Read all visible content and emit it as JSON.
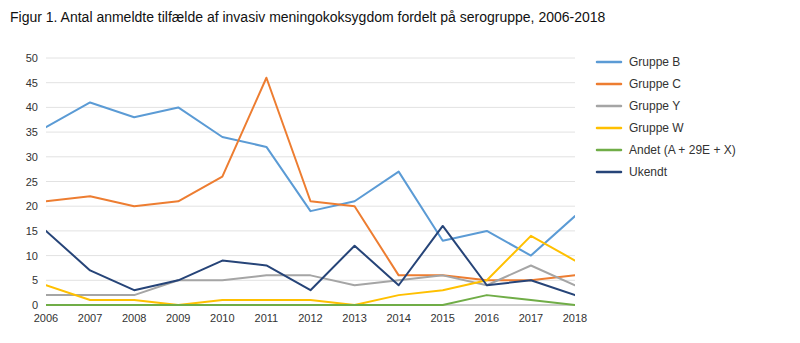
{
  "chart_data": {
    "type": "line",
    "title": "Figur 1. Antal anmeldte tilfælde af invasiv meningokoksygdom fordelt på serogruppe, 2006-2018",
    "x": [
      2006,
      2007,
      2008,
      2009,
      2010,
      2011,
      2012,
      2013,
      2014,
      2015,
      2016,
      2017,
      2018
    ],
    "series": [
      {
        "name": "Gruppe B",
        "color": "#5B9BD5",
        "values": [
          36,
          41,
          38,
          40,
          34,
          32,
          19,
          21,
          27,
          13,
          15,
          10,
          18
        ]
      },
      {
        "name": "Gruppe C",
        "color": "#ED7D31",
        "values": [
          21,
          22,
          20,
          21,
          26,
          46,
          21,
          20,
          6,
          6,
          5,
          5,
          6
        ]
      },
      {
        "name": "Gruppe Y",
        "color": "#A5A5A5",
        "values": [
          2,
          2,
          2,
          5,
          5,
          6,
          6,
          4,
          5,
          6,
          4,
          8,
          4
        ]
      },
      {
        "name": "Gruppe W",
        "color": "#FFC000",
        "values": [
          4,
          1,
          1,
          0,
          1,
          1,
          1,
          0,
          2,
          3,
          5,
          14,
          9
        ]
      },
      {
        "name": "Andet (A + 29E + X)",
        "color": "#70AD47",
        "values": [
          0,
          0,
          0,
          0,
          0,
          0,
          0,
          0,
          0,
          0,
          2,
          1,
          0
        ]
      },
      {
        "name": "Ukendt",
        "color": "#264478",
        "values": [
          15,
          7,
          3,
          5,
          9,
          8,
          3,
          12,
          4,
          16,
          4,
          5,
          2
        ]
      }
    ],
    "xlim": [
      2006,
      2018
    ],
    "xticks": [
      2006,
      2007,
      2008,
      2009,
      2010,
      2011,
      2012,
      2013,
      2014,
      2015,
      2016,
      2017,
      2018
    ],
    "ylim": [
      0,
      50
    ],
    "yticks": [
      0,
      5,
      10,
      15,
      20,
      25,
      30,
      35,
      40,
      45,
      50
    ],
    "grid": true,
    "legend": "right"
  }
}
